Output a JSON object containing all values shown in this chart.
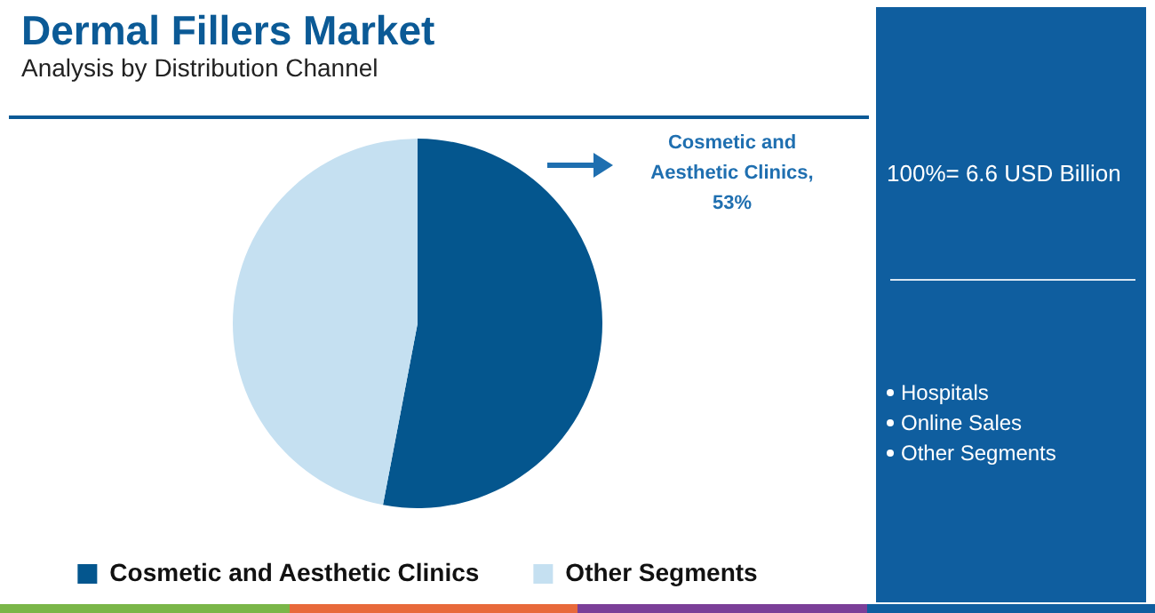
{
  "chart_data": {
    "type": "pie",
    "title": "Dermal Fillers Market",
    "subtitle": "Analysis by Distribution Channel",
    "categories": [
      "Cosmetic and Aesthetic Clinics",
      "Other Segments"
    ],
    "values": [
      53,
      47
    ],
    "colors": [
      "#04568e",
      "#c5e0f1"
    ],
    "value_labels": [
      "Cosmetic and Aesthetic Clinics, 53%",
      null
    ],
    "legend": "bottom",
    "annotations": [
      "100%= 6.6 USD Billion",
      "Hospitals",
      "Online Sales",
      "Other Segments"
    ]
  }
}
